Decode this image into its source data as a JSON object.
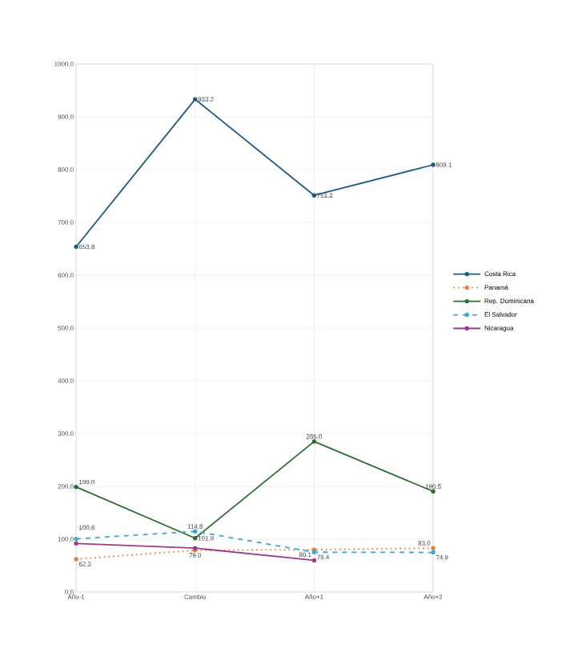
{
  "chart_data": {
    "type": "line",
    "categories": [
      "Año-1",
      "Cambio",
      "Año+1",
      "Año+2"
    ],
    "ylim": [
      0,
      1000
    ],
    "yticks": [
      {
        "value": 0,
        "label": "0.0"
      },
      {
        "value": 100,
        "label": "100.0"
      },
      {
        "value": 200,
        "label": "200.0"
      },
      {
        "value": 300,
        "label": "300.0"
      },
      {
        "value": 400,
        "label": "400.0"
      },
      {
        "value": 500,
        "label": "500.0"
      },
      {
        "value": 600,
        "label": "600.0"
      },
      {
        "value": 700,
        "label": "700.0"
      },
      {
        "value": 800,
        "label": "800.0"
      },
      {
        "value": 900,
        "label": "900.0"
      },
      {
        "value": 1000,
        "label": "1000.0"
      }
    ],
    "grid": true,
    "legend": "right",
    "marker": "circle",
    "series": [
      {
        "name": "Costa Rica",
        "color": "#1f5b7e",
        "line_style": "solid",
        "values": [
          653.8,
          933.2,
          751.2,
          809.1
        ],
        "value_labels": [
          "653.8",
          "933.2",
          "751.2",
          "809.1"
        ]
      },
      {
        "name": "Panamá",
        "color": "#ed7d31",
        "line_style": "dotted",
        "values": [
          62.3,
          79.0,
          80.1,
          83.0
        ],
        "value_labels": [
          "62.3",
          "79.0",
          "80.1",
          "83.0"
        ]
      },
      {
        "name": "Rep. Dominicana",
        "color": "#2e6b30",
        "line_style": "solid",
        "values": [
          199.0,
          101.9,
          285.0,
          190.5
        ],
        "value_labels": [
          "199.0",
          "101.9",
          "285.0",
          "190.5"
        ]
      },
      {
        "name": "El Salvador",
        "color": "#3aa8d0",
        "line_style": "dashed",
        "values": [
          100.6,
          114.8,
          75.4,
          74.9
        ],
        "value_labels": [
          "100.6",
          "114.8",
          "75.4",
          "74.9"
        ]
      },
      {
        "name": "Nicaragua",
        "color": "#9b3a8f",
        "line_style": "solid",
        "values": [
          92,
          83,
          60,
          null
        ]
      }
    ]
  }
}
